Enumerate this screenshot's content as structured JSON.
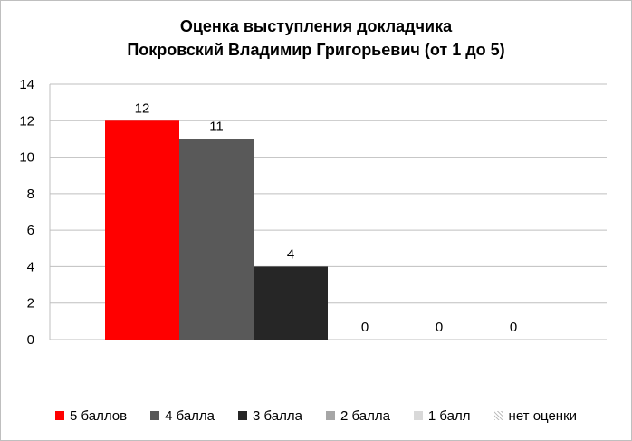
{
  "chart_data": {
    "type": "bar",
    "title_lines": [
      "Оценка выступления докладчика",
      "Покровский Владимир Григорьевич (от 1 до 5)"
    ],
    "categories": [
      "5 баллов",
      "4 балла",
      "3 балла",
      "2 балла",
      "1 балл",
      "нет оценки"
    ],
    "values": [
      12,
      11,
      4,
      0,
      0,
      0
    ],
    "colors": [
      "#ff0000",
      "#595959",
      "#262626",
      "#a6a6a6",
      "#d9d9d9",
      "#bfbfbf"
    ],
    "y_ticks": [
      "0",
      "2",
      "4",
      "6",
      "8",
      "10",
      "12",
      "14"
    ],
    "ylim": [
      0,
      14
    ],
    "grid": true,
    "legend_position": "bottom",
    "data_labels": true
  }
}
